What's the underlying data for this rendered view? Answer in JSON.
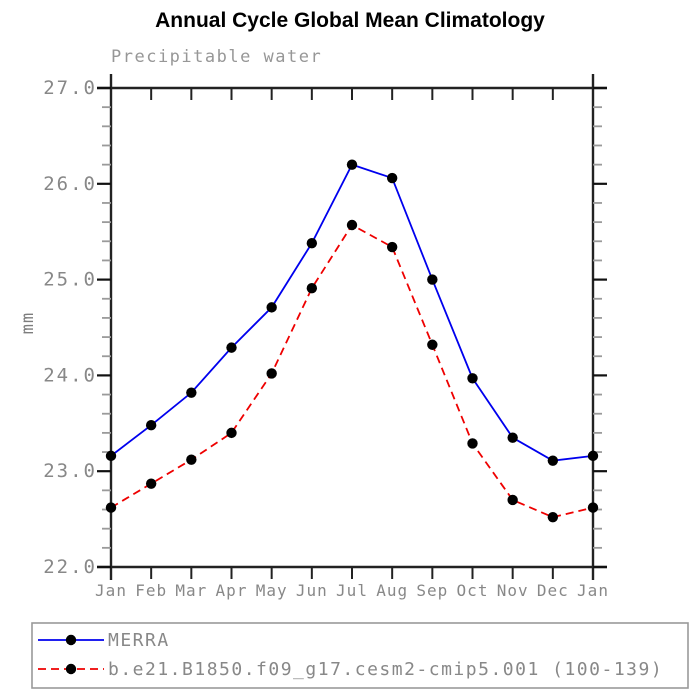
{
  "chart_data": {
    "type": "line",
    "title": "Annual Cycle Global Mean Climatology",
    "subtitle": "Precipitable water",
    "ylabel": "mm",
    "ylim": [
      22.0,
      27.0
    ],
    "yticks": [
      22.0,
      23.0,
      24.0,
      25.0,
      26.0,
      27.0
    ],
    "ytick_labels": [
      "22.0",
      "23.0",
      "24.0",
      "25.0",
      "26.0",
      "27.0"
    ],
    "yminor_step": 0.2,
    "categories": [
      "Jan",
      "Feb",
      "Mar",
      "Apr",
      "May",
      "Jun",
      "Jul",
      "Aug",
      "Sep",
      "Oct",
      "Nov",
      "Dec",
      "Jan"
    ],
    "series": [
      {
        "name": "MERRA",
        "color": "#0000ee",
        "line_style": "solid",
        "marker": "filled-circle",
        "marker_color": "#000000",
        "values": [
          23.16,
          23.48,
          23.82,
          24.29,
          24.71,
          25.38,
          26.2,
          26.06,
          25.0,
          23.97,
          23.35,
          23.11,
          23.16
        ]
      },
      {
        "name": "b.e21.B1850.f09_g17.cesm2-cmip5.001 (100-139)",
        "color": "#ee0000",
        "line_style": "dashed",
        "marker": "filled-circle",
        "marker_color": "#000000",
        "values": [
          22.62,
          22.87,
          23.12,
          23.4,
          24.02,
          24.91,
          25.57,
          25.34,
          24.32,
          23.29,
          22.7,
          22.52,
          22.62
        ]
      }
    ],
    "legend_position": "bottom",
    "grid": false,
    "axis_color": "#222222",
    "tick_label_color": "#888888"
  }
}
